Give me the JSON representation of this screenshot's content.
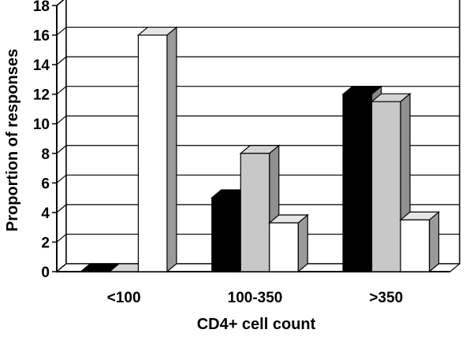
{
  "chart_data": {
    "type": "bar",
    "categories": [
      "<100",
      "100-350",
      ">350"
    ],
    "series": [
      {
        "values": [
          0,
          5,
          12
        ],
        "color": "#000000"
      },
      {
        "values": [
          0,
          8,
          11.5
        ],
        "color": "#c8c8c8"
      },
      {
        "values": [
          16,
          3.3,
          3.5
        ],
        "color": "#ffffff"
      }
    ],
    "xlabel": "CD4+ cell count",
    "ylabel": "Proportion of responses",
    "ylim": [
      0,
      18
    ],
    "yticks": [
      0,
      2,
      4,
      6,
      8,
      10,
      12,
      14,
      16,
      18
    ],
    "grid": true,
    "style": "3d-bar"
  }
}
